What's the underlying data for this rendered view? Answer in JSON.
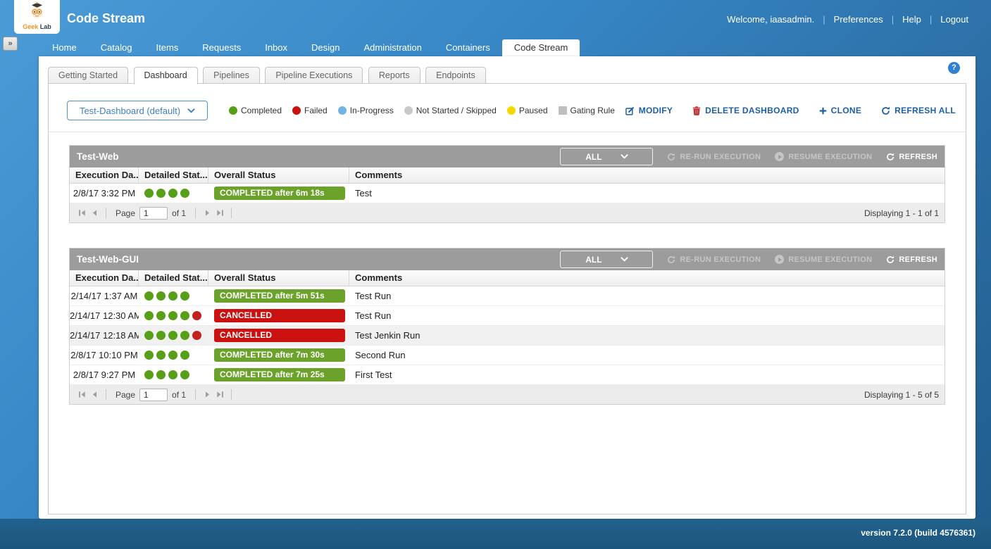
{
  "header": {
    "title": "Code Stream",
    "brand": {
      "word1": "Geek",
      "word2": "Lab"
    },
    "user": {
      "welcome": "Welcome, iaasadmin.",
      "preferences": "Preferences",
      "help": "Help",
      "logout": "Logout"
    }
  },
  "nav": {
    "expander_icon": "»",
    "tabs": [
      {
        "label": "Home"
      },
      {
        "label": "Catalog"
      },
      {
        "label": "Items"
      },
      {
        "label": "Requests"
      },
      {
        "label": "Inbox"
      },
      {
        "label": "Design"
      },
      {
        "label": "Administration"
      },
      {
        "label": "Containers"
      },
      {
        "label": "Code Stream",
        "active": true
      }
    ]
  },
  "subtabs": [
    {
      "label": "Getting Started"
    },
    {
      "label": "Dashboard",
      "active": true
    },
    {
      "label": "Pipelines"
    },
    {
      "label": "Pipeline Executions"
    },
    {
      "label": "Reports"
    },
    {
      "label": "Endpoints"
    }
  ],
  "help_icon": "?",
  "toolbar": {
    "dashboard_selector": "Test-Dashboard (default)",
    "legend": [
      {
        "label": "Completed",
        "color": "#55a017",
        "shape": "circle"
      },
      {
        "label": "Failed",
        "color": "#cc1010",
        "shape": "circle"
      },
      {
        "label": "In-Progress",
        "color": "#6fb5e4",
        "shape": "circle"
      },
      {
        "label": "Not Started / Skipped",
        "color": "#c8c8c8",
        "shape": "circle"
      },
      {
        "label": "Paused",
        "color": "#f5d800",
        "shape": "circle"
      },
      {
        "label": "Gating Rule",
        "color": "#bfbfbf",
        "shape": "square"
      }
    ],
    "actions": {
      "modify": "MODIFY",
      "delete": "DELETE DASHBOARD",
      "clone": "CLONE",
      "refresh_all": "REFRESH ALL"
    }
  },
  "tables": [
    {
      "title": "Test-Web",
      "filter": "ALL",
      "rerun_label": "RE-RUN EXECUTION",
      "resume_label": "RESUME EXECUTION",
      "refresh_label": "REFRESH",
      "columns": [
        "Execution Da...",
        "Detailed Stat...",
        "Overall Status",
        "Comments"
      ],
      "rows": [
        {
          "date": "2/8/17 3:32 PM",
          "dots": [
            "green",
            "green",
            "green",
            "green"
          ],
          "status": "COMPLETED after 6m 18s",
          "status_type": "completed",
          "comment": "Test",
          "selected": false
        }
      ],
      "pagination": {
        "page_label": "Page",
        "page_value": "1",
        "of_label": "of 1",
        "displaying": "Displaying 1 - 1 of 1"
      }
    },
    {
      "title": "Test-Web-GUI",
      "filter": "ALL",
      "rerun_label": "RE-RUN EXECUTION",
      "resume_label": "RESUME EXECUTION",
      "refresh_label": "REFRESH",
      "columns": [
        "Execution Da...",
        "Detailed Stat...",
        "Overall Status",
        "Comments"
      ],
      "rows": [
        {
          "date": "2/14/17 1:37 AM",
          "dots": [
            "green",
            "green",
            "green",
            "green"
          ],
          "status": "COMPLETED after 5m 51s",
          "status_type": "completed",
          "comment": "Test Run",
          "selected": false
        },
        {
          "date": "2/14/17 12:30 AM",
          "dots": [
            "green",
            "green",
            "green",
            "green",
            "red"
          ],
          "status": "CANCELLED",
          "status_type": "cancelled",
          "comment": "Test Run",
          "selected": false
        },
        {
          "date": "2/14/17 12:18 AM",
          "dots": [
            "green",
            "green",
            "green",
            "green",
            "red"
          ],
          "status": "CANCELLED",
          "status_type": "cancelled",
          "comment": "Test Jenkin Run",
          "selected": true
        },
        {
          "date": "2/8/17 10:10 PM",
          "dots": [
            "green",
            "green",
            "green",
            "green"
          ],
          "status": "COMPLETED after 7m 30s",
          "status_type": "completed",
          "comment": "Second Run",
          "selected": false
        },
        {
          "date": "2/8/17 9:27 PM",
          "dots": [
            "green",
            "green",
            "green",
            "green"
          ],
          "status": "COMPLETED after 7m 25s",
          "status_type": "completed",
          "comment": "First Test",
          "selected": false
        }
      ],
      "pagination": {
        "page_label": "Page",
        "page_value": "1",
        "of_label": "of 1",
        "displaying": "Displaying 1 - 5 of 5"
      }
    }
  ],
  "footer": {
    "version": "version 7.2.0 (build 4576361)"
  },
  "colors": {
    "header_blue": "#3787c7",
    "footer_blue": "#1e5b85",
    "titlebar_gray": "#9c9c9c",
    "link_blue": "#1c5fa9",
    "selector_blue": "#3f7fbf",
    "delete_red": "#cc2222",
    "status": {
      "completed": "#6ba32a",
      "cancelled": "#cc1111"
    },
    "dots": {
      "green": "#55a017",
      "red": "#c32020"
    }
  }
}
